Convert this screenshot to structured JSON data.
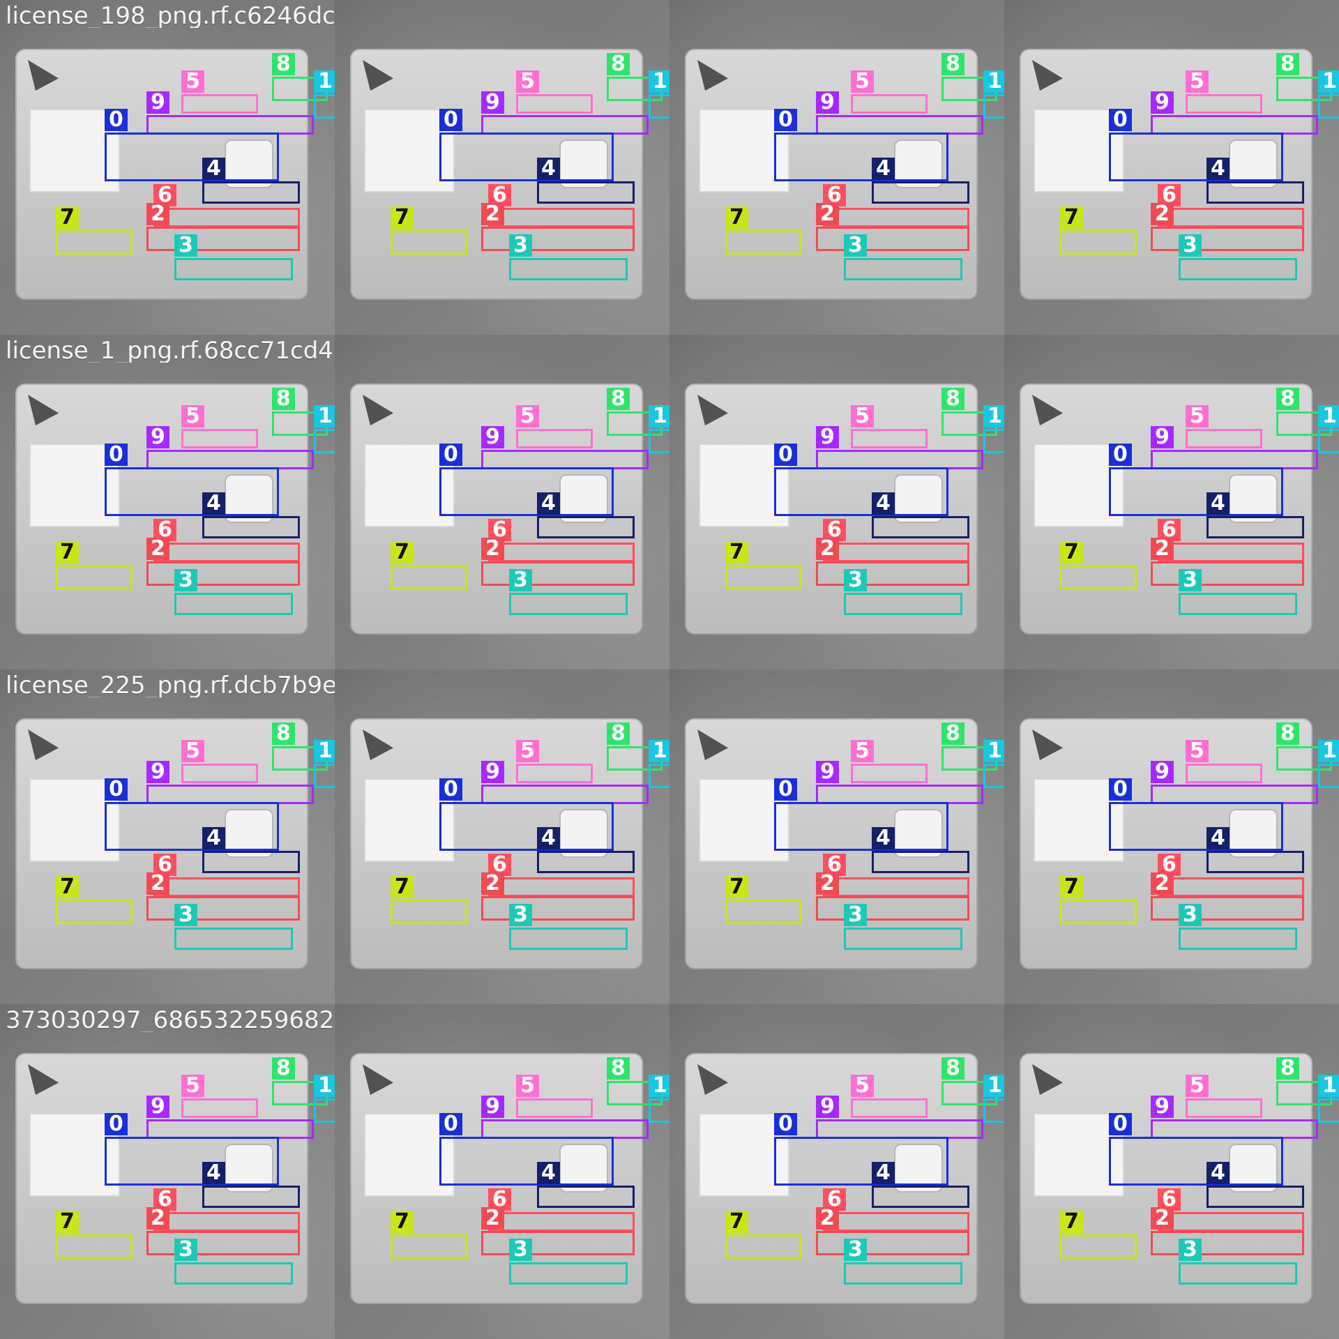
{
  "tiles": [
    {
      "title": "license_198_png.rf.c6246dc"
    },
    {
      "title": "license_1_png.rf.68cc71cd4"
    },
    {
      "title": "license_225_png.rf.dcb7b9e"
    },
    {
      "title": "373030297_686532259682"
    }
  ],
  "detections": {
    "labels": [
      "0",
      "1",
      "2",
      "3",
      "4",
      "5",
      "6",
      "7",
      "8",
      "9"
    ],
    "colors": {
      "0": "#1a2ed9",
      "1": "#18c7e0",
      "2": "#f04b55",
      "3": "#1dc9b5",
      "4": "#15206a",
      "5": "#ff6fd1",
      "6": "#ff4f5e",
      "7": "#c8e61a",
      "8": "#2fe46b",
      "9": "#a629ff"
    }
  }
}
